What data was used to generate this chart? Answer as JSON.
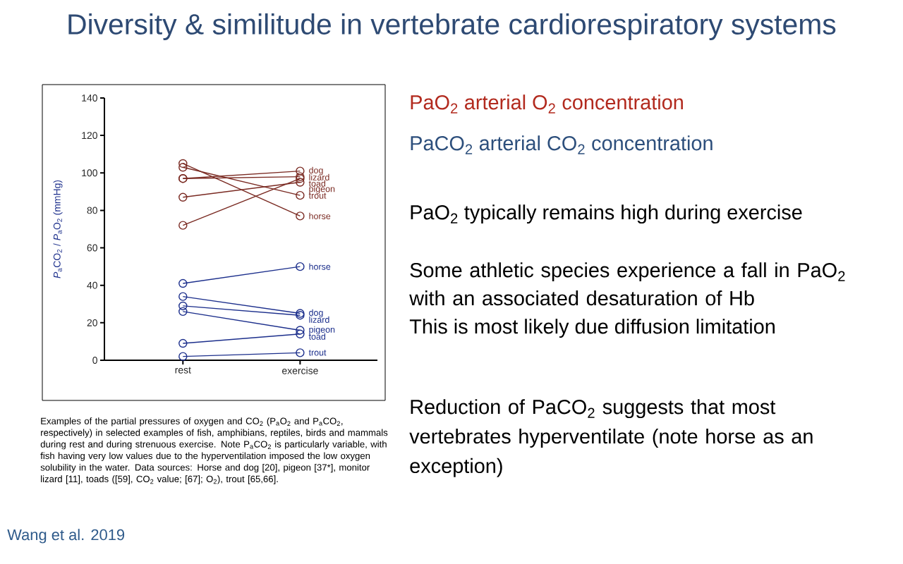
{
  "chart_data": {
    "type": "line",
    "title": "Diversity & similitude in vertebrate cardiorespiratory systems",
    "ylabel": "*P*$_{a}$CO$_{2}$ / *P*$_{a}$O$_{2}$ (mmHg)",
    "categories": [
      "rest",
      "exercise"
    ],
    "ylim": [
      0,
      140
    ],
    "yticks": [
      0,
      20,
      40,
      60,
      80,
      100,
      120,
      140
    ],
    "marker": "circle",
    "series": [
      {
        "name": "dog",
        "color": "#7a2a22",
        "values": [
          97,
          101
        ]
      },
      {
        "name": "lizard",
        "color": "#7a2a22",
        "values": [
          97,
          98
        ]
      },
      {
        "name": "toad",
        "color": "#7a2a22",
        "values": [
          72,
          97
        ]
      },
      {
        "name": "pigeon",
        "color": "#7a2a22",
        "values": [
          87,
          95
        ]
      },
      {
        "name": "trout",
        "color": "#7a2a22",
        "values": [
          103,
          88
        ]
      },
      {
        "name": "horse",
        "color": "#7a2a22",
        "values": [
          105,
          77
        ]
      },
      {
        "name": "horse",
        "color": "#1c2f8c",
        "values": [
          41,
          50
        ]
      },
      {
        "name": "dog",
        "color": "#1c2f8c",
        "values": [
          34,
          25
        ]
      },
      {
        "name": "lizard",
        "color": "#1c2f8c",
        "values": [
          29,
          24
        ]
      },
      {
        "name": "pigeon",
        "color": "#1c2f8c",
        "values": [
          26,
          16
        ]
      },
      {
        "name": "toad",
        "color": "#1c2f8c",
        "values": [
          9,
          14
        ]
      },
      {
        "name": "trout",
        "color": "#1c2f8c",
        "values": [
          2,
          4
        ]
      }
    ],
    "annotations": [
      "Examples of the partial pressures of oxygen and CO$_{2}$ (P$_{a}$O$_{2}$ and P$_{a}$CO$_{2}$, respectively) in selected examples of fish, amphibians, reptiles, birds and mammals during rest and during strenuous exercise. Note P$_{a}$CO$_{2}$ is particularly variable, with fish having very low values due to the hyperventilation imposed the low oxygen solubility in the water. Data sources: Horse and dog [20], pigeon [37*], monitor lizard [11], toads ([59], CO$_{2}$ value; [67]; O$_{2}$), trout [65,66].",
      "Wang et al. 2019",
      "PaO$_{2}$ arterial O$_{2}$ concentration",
      "PaCO$_{2}$ arterial CO$_{2}$ concentration",
      "PaO$_{2}$ typically remains high during exercise",
      "Some athletic species experience a fall in PaO$_{2}$ with an associated desaturation of Hb",
      "This is most likely due diffusion limitation",
      "Reduction of PaCO$_{2}$ suggests that most vertebrates hyperventilate (note horse as an exception)"
    ]
  }
}
